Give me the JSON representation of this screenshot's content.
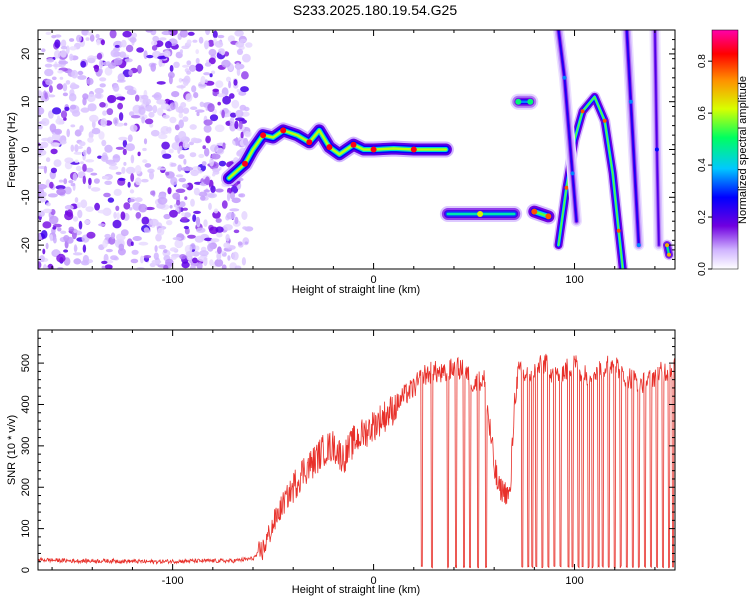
{
  "title": "S233.2025.180.19.54.G25",
  "chart_data": [
    {
      "type": "heatmap",
      "xlabel": "Height of straight line (km)",
      "ylabel": "Frequency (Hz)",
      "xlim": [
        -167,
        150
      ],
      "ylim": [
        -25,
        25
      ],
      "x_ticks": [
        -100,
        0,
        100
      ],
      "x_tick_labels": [
        "-100",
        "0",
        "100"
      ],
      "y_ticks": [
        -20,
        -10,
        0,
        10,
        20
      ],
      "y_tick_labels": [
        "-20",
        "-10",
        "0",
        "10",
        "20"
      ],
      "colorbar": {
        "label": "Normalized spectral amplitude",
        "range": [
          0,
          0.92
        ],
        "ticks": [
          0,
          0.2,
          0.4,
          0.6,
          0.8
        ],
        "tick_labels": [
          "0.0",
          "0.2",
          "0.4",
          "0.6",
          "0.8"
        ],
        "colormap": [
          "#ffffff",
          "#d0b4ff",
          "#7000e0",
          "#0000ff",
          "#00c8ff",
          "#00ff60",
          "#d8ff00",
          "#ff9000",
          "#ff0000",
          "#ff00aa"
        ]
      },
      "features": [
        {
          "kind": "noise",
          "x_range": [
            -167,
            -62
          ],
          "freq_range": [
            -25,
            25
          ],
          "amplitude": 0.1
        },
        {
          "kind": "track",
          "points": [
            [
              -72,
              -6
            ],
            [
              -64,
              -3
            ],
            [
              -60,
              0
            ],
            [
              -55,
              3
            ],
            [
              -50,
              2.5
            ],
            [
              -45,
              4
            ],
            [
              -38,
              3
            ],
            [
              -32,
              1.5
            ],
            [
              -27,
              4
            ],
            [
              -22,
              0.5
            ],
            [
              -17,
              -1
            ],
            [
              -10,
              1
            ],
            [
              -5,
              0
            ],
            [
              0,
              0
            ],
            [
              10,
              0.2
            ],
            [
              20,
              0
            ],
            [
              36,
              0
            ]
          ],
          "amplitude": 0.6
        },
        {
          "kind": "track",
          "points": [
            [
              37,
              -13.5
            ],
            [
              53,
              -13.5
            ],
            [
              70,
              -13.5
            ]
          ],
          "amplitude": 0.45
        },
        {
          "kind": "track",
          "points": [
            [
              80,
              -13
            ],
            [
              87,
              -14
            ]
          ],
          "amplitude": 0.55
        },
        {
          "kind": "track",
          "points": [
            [
              72,
              10
            ],
            [
              78,
              10
            ]
          ],
          "amplitude": 0.35
        },
        {
          "kind": "arc",
          "points": [
            [
              92,
              -20
            ],
            [
              96,
              -8
            ],
            [
              100,
              2
            ],
            [
              104,
              8
            ],
            [
              110,
              11
            ],
            [
              115,
              6
            ],
            [
              119,
              -5
            ],
            [
              122,
              -17
            ],
            [
              124,
              -25
            ]
          ],
          "amplitude": 0.55
        },
        {
          "kind": "arc",
          "points": [
            [
              92,
              25
            ],
            [
              95,
              15
            ],
            [
              97,
              5
            ],
            [
              99,
              -5
            ],
            [
              101,
              -15
            ]
          ],
          "amplitude": 0.25
        },
        {
          "kind": "arc",
          "points": [
            [
              126,
              25
            ],
            [
              128,
              10
            ],
            [
              130,
              -5
            ],
            [
              132,
              -20
            ]
          ],
          "amplitude": 0.25
        },
        {
          "kind": "arc",
          "points": [
            [
              140,
              25
            ],
            [
              141,
              0
            ],
            [
              142,
              -20
            ]
          ],
          "amplitude": 0.2
        },
        {
          "kind": "arc",
          "points": [
            [
              146,
              -20
            ],
            [
              147,
              -22
            ]
          ],
          "amplitude": 0.5
        }
      ]
    },
    {
      "type": "line",
      "xlabel": "Height of straight line (km)",
      "ylabel": "SNR (10 * v/v)",
      "xlim": [
        -167,
        150
      ],
      "ylim": [
        0,
        580
      ],
      "x_ticks": [
        -100,
        0,
        100
      ],
      "x_tick_labels": [
        "-100",
        "0",
        "100"
      ],
      "y_ticks": [
        0,
        100,
        200,
        300,
        400,
        500
      ],
      "y_tick_labels": [
        "0",
        "100",
        "200",
        "300",
        "400",
        "500"
      ],
      "series": [
        {
          "color": "#e8302a",
          "x": [
            -167,
            -150,
            -130,
            -110,
            -90,
            -70,
            -60,
            -55,
            -50,
            -45,
            -40,
            -35,
            -30,
            -25,
            -20,
            -15,
            -10,
            -5,
            0,
            5,
            10,
            15,
            20,
            25,
            30,
            35,
            40,
            45,
            50,
            55,
            60,
            62,
            65,
            68,
            70,
            72,
            75,
            80,
            85,
            90,
            95,
            100,
            105,
            110,
            115,
            120,
            125,
            130,
            135,
            140,
            145,
            150
          ],
          "y": [
            25,
            22,
            22,
            20,
            22,
            22,
            28,
            50,
            110,
            160,
            200,
            240,
            260,
            290,
            300,
            270,
            310,
            330,
            350,
            370,
            390,
            420,
            440,
            470,
            480,
            470,
            490,
            480,
            450,
            460,
            250,
            200,
            190,
            180,
            400,
            480,
            470,
            480,
            500,
            470,
            480,
            500,
            470,
            480,
            490,
            500,
            470,
            460,
            450,
            470,
            480,
            490
          ],
          "dropouts_x": [
            24,
            29,
            37,
            41,
            45,
            48,
            52,
            56,
            74,
            77,
            79,
            81,
            84,
            87,
            90,
            93,
            97,
            99,
            102,
            104,
            107,
            109,
            112,
            114,
            117,
            120,
            123,
            126,
            129,
            132,
            135,
            138,
            141,
            144,
            147,
            149
          ]
        }
      ]
    }
  ]
}
